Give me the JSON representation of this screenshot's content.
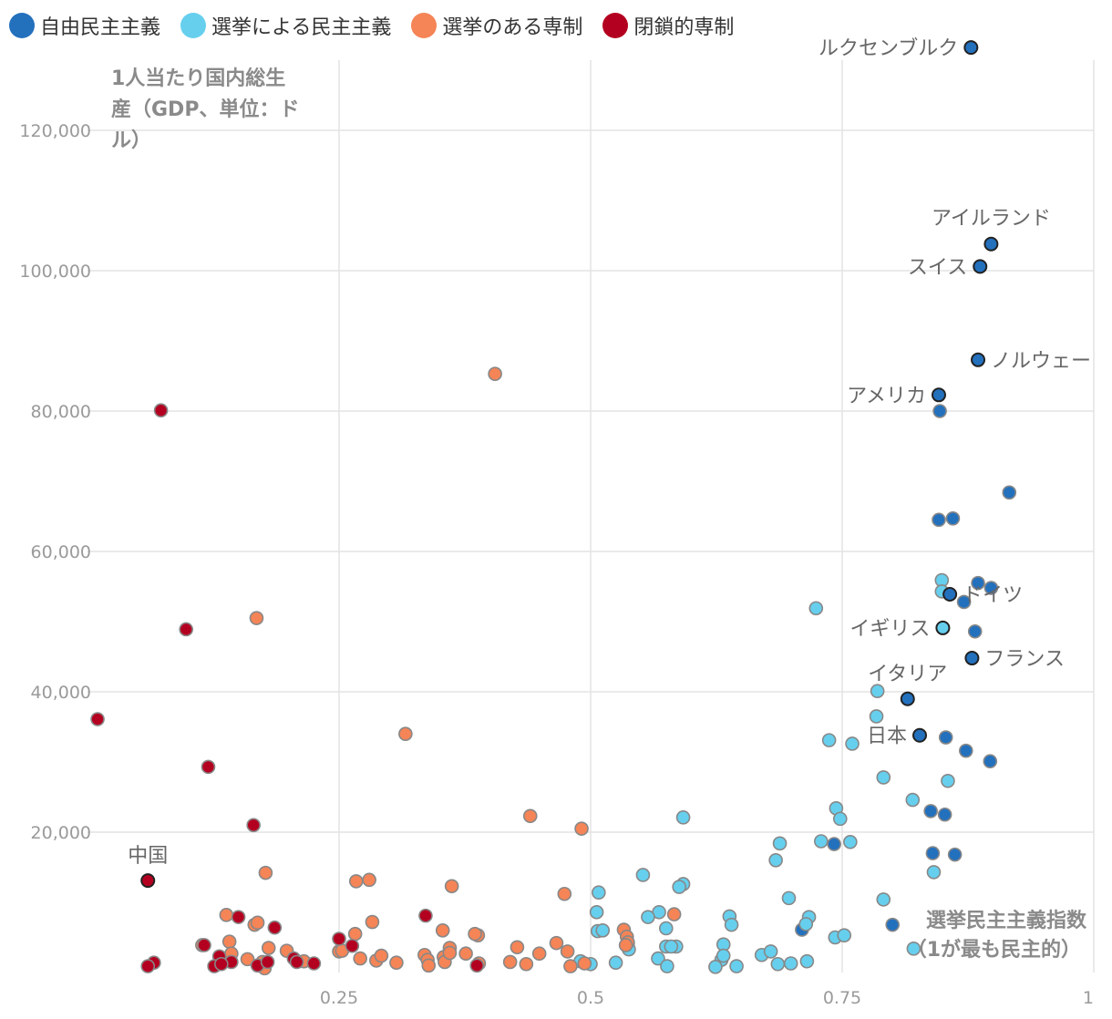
{
  "chart_data": {
    "type": "scatter",
    "legend": {
      "position": "top-left",
      "items": [
        {
          "name": "自由民主主義",
          "color": "#2370bd"
        },
        {
          "name": "選挙による民主主義",
          "color": "#66cfee"
        },
        {
          "name": "選挙のある専制",
          "color": "#f58456"
        },
        {
          "name": "閉鎖的専制",
          "color": "#b40020"
        }
      ]
    },
    "grid": true,
    "xlabel": [
      "選挙民主主義指数",
      "（1が最も民主的）"
    ],
    "ylabel": [
      "1人当たり国内総生",
      "産（GDP、単位：ド",
      "ル）"
    ],
    "xlim": [
      0,
      1
    ],
    "ylim": [
      0,
      130000
    ],
    "x_ticks": [
      0.25,
      0.5,
      0.75,
      1
    ],
    "x_tick_labels": [
      "0.25",
      "0.5",
      "0.75",
      "1"
    ],
    "y_ticks": [
      20000,
      40000,
      60000,
      80000,
      100000,
      120000
    ],
    "y_tick_labels": [
      "20,000",
      "40,000",
      "60,000",
      "80,000",
      "100,000",
      "120,000"
    ],
    "labels": [
      {
        "text": "ルクセンブルク",
        "x": 0.878,
        "y": 131800,
        "anchor": "end",
        "dx": -14,
        "dy": 8
      },
      {
        "text": "アイルランド",
        "x": 0.898,
        "y": 103800,
        "anchor": "middle",
        "dx": 0,
        "dy": -21
      },
      {
        "text": "スイス",
        "x": 0.887,
        "y": 100600,
        "anchor": "end",
        "dx": -14,
        "dy": 8
      },
      {
        "text": "ノルウェー",
        "x": 0.885,
        "y": 87300,
        "anchor": "start",
        "dx": 14,
        "dy": 8
      },
      {
        "text": "アメリカ",
        "x": 0.846,
        "y": 82300,
        "anchor": "end",
        "dx": -14,
        "dy": 8
      },
      {
        "text": "ドイツ",
        "x": 0.857,
        "y": 53900,
        "anchor": "start",
        "dx": 14,
        "dy": 8
      },
      {
        "text": "イギリス",
        "x": 0.85,
        "y": 49100,
        "anchor": "end",
        "dx": -14,
        "dy": 8
      },
      {
        "text": "フランス",
        "x": 0.879,
        "y": 44800,
        "anchor": "start",
        "dx": 14,
        "dy": 8
      },
      {
        "text": "イタリア",
        "x": 0.815,
        "y": 39000,
        "anchor": "middle",
        "dx": 0,
        "dy": -20
      },
      {
        "text": "日本",
        "x": 0.827,
        "y": 33800,
        "anchor": "end",
        "dx": -14,
        "dy": 8
      },
      {
        "text": "中国",
        "x": 0.06,
        "y": 13100,
        "anchor": "middle",
        "dx": 0,
        "dy": -20
      }
    ],
    "series": [
      {
        "name": "自由民主主義",
        "color": "#2370bd",
        "points": [
          [
            0.878,
            131800
          ],
          [
            0.898,
            103800
          ],
          [
            0.887,
            100600
          ],
          [
            0.885,
            87300
          ],
          [
            0.846,
            82300
          ],
          [
            0.847,
            80000
          ],
          [
            0.916,
            68400
          ],
          [
            0.846,
            64500
          ],
          [
            0.86,
            64700
          ],
          [
            0.885,
            55500
          ],
          [
            0.898,
            54800
          ],
          [
            0.857,
            53900
          ],
          [
            0.871,
            52800
          ],
          [
            0.882,
            48600
          ],
          [
            0.879,
            44800
          ],
          [
            0.815,
            39000
          ],
          [
            0.827,
            33800
          ],
          [
            0.853,
            33500
          ],
          [
            0.873,
            31600
          ],
          [
            0.897,
            30100
          ],
          [
            0.838,
            23000
          ],
          [
            0.852,
            22500
          ],
          [
            0.742,
            18300
          ],
          [
            0.84,
            17000
          ],
          [
            0.862,
            16800
          ],
          [
            0.71,
            6100
          ],
          [
            0.8,
            6800
          ]
        ]
      },
      {
        "name": "選挙による民主主義",
        "color": "#66cfee",
        "points": [
          [
            0.85,
            49100
          ],
          [
            0.849,
            55900
          ],
          [
            0.849,
            54300
          ],
          [
            0.724,
            51900
          ],
          [
            0.785,
            40100
          ],
          [
            0.784,
            36500
          ],
          [
            0.737,
            33100
          ],
          [
            0.76,
            32600
          ],
          [
            0.791,
            27800
          ],
          [
            0.855,
            27300
          ],
          [
            0.82,
            24600
          ],
          [
            0.744,
            23400
          ],
          [
            0.748,
            21900
          ],
          [
            0.592,
            22100
          ],
          [
            0.729,
            18700
          ],
          [
            0.758,
            18600
          ],
          [
            0.688,
            18400
          ],
          [
            0.684,
            16000
          ],
          [
            0.841,
            14300
          ],
          [
            0.552,
            13900
          ],
          [
            0.592,
            12600
          ],
          [
            0.588,
            12200
          ],
          [
            0.508,
            11400
          ],
          [
            0.791,
            10400
          ],
          [
            0.697,
            10600
          ],
          [
            0.506,
            8600
          ],
          [
            0.568,
            8600
          ],
          [
            0.557,
            7900
          ],
          [
            0.638,
            8000
          ],
          [
            0.717,
            7900
          ],
          [
            0.507,
            5900
          ],
          [
            0.512,
            6000
          ],
          [
            0.575,
            6300
          ],
          [
            0.64,
            6800
          ],
          [
            0.714,
            6900
          ],
          [
            0.537,
            4100
          ],
          [
            0.538,
            3300
          ],
          [
            0.575,
            3700
          ],
          [
            0.585,
            3700
          ],
          [
            0.632,
            4000
          ],
          [
            0.743,
            5000
          ],
          [
            0.752,
            5300
          ],
          [
            0.821,
            3400
          ],
          [
            0.49,
            1600
          ],
          [
            0.525,
            1400
          ],
          [
            0.567,
            2000
          ],
          [
            0.576,
            900
          ],
          [
            0.63,
            1800
          ],
          [
            0.624,
            800
          ],
          [
            0.645,
            900
          ],
          [
            0.67,
            2500
          ],
          [
            0.679,
            3000
          ],
          [
            0.686,
            1200
          ],
          [
            0.699,
            1300
          ],
          [
            0.715,
            1600
          ],
          [
            0.58,
            3700
          ],
          [
            0.5,
            1200
          ],
          [
            0.632,
            2400
          ]
        ]
      },
      {
        "name": "選挙のある専制",
        "color": "#f58456",
        "points": [
          [
            0.168,
            50500
          ],
          [
            0.405,
            85300
          ],
          [
            0.316,
            34000
          ],
          [
            0.44,
            22300
          ],
          [
            0.491,
            20500
          ],
          [
            0.177,
            14200
          ],
          [
            0.267,
            13000
          ],
          [
            0.28,
            13200
          ],
          [
            0.362,
            12300
          ],
          [
            0.474,
            11200
          ],
          [
            0.583,
            8300
          ],
          [
            0.138,
            8200
          ],
          [
            0.166,
            6800
          ],
          [
            0.169,
            7100
          ],
          [
            0.283,
            7200
          ],
          [
            0.353,
            6000
          ],
          [
            0.388,
            5300
          ],
          [
            0.533,
            6100
          ],
          [
            0.536,
            5100
          ],
          [
            0.141,
            4400
          ],
          [
            0.18,
            3500
          ],
          [
            0.198,
            3100
          ],
          [
            0.25,
            3000
          ],
          [
            0.266,
            5500
          ],
          [
            0.354,
            2200
          ],
          [
            0.376,
            2700
          ],
          [
            0.427,
            3600
          ],
          [
            0.449,
            2700
          ],
          [
            0.466,
            4200
          ],
          [
            0.477,
            3000
          ],
          [
            0.537,
            4300
          ],
          [
            0.114,
            3900
          ],
          [
            0.143,
            2700
          ],
          [
            0.159,
            1900
          ],
          [
            0.174,
            1500
          ],
          [
            0.176,
            600
          ],
          [
            0.215,
            1600
          ],
          [
            0.253,
            3100
          ],
          [
            0.271,
            2000
          ],
          [
            0.287,
            1700
          ],
          [
            0.292,
            2400
          ],
          [
            0.307,
            1400
          ],
          [
            0.335,
            2500
          ],
          [
            0.338,
            1800
          ],
          [
            0.339,
            1000
          ],
          [
            0.355,
            1500
          ],
          [
            0.36,
            3500
          ],
          [
            0.36,
            2800
          ],
          [
            0.389,
            1300
          ],
          [
            0.42,
            1500
          ],
          [
            0.436,
            1200
          ],
          [
            0.48,
            900
          ],
          [
            0.494,
            1300
          ],
          [
            0.535,
            3900
          ],
          [
            0.385,
            5500
          ]
        ]
      },
      {
        "name": "閉鎖的専制",
        "color": "#b40020",
        "points": [
          [
            0.073,
            80100
          ],
          [
            0.098,
            48900
          ],
          [
            0.01,
            36100
          ],
          [
            0.12,
            29300
          ],
          [
            0.165,
            21000
          ],
          [
            0.06,
            13100
          ],
          [
            0.15,
            7900
          ],
          [
            0.186,
            6400
          ],
          [
            0.336,
            8100
          ],
          [
            0.25,
            4800
          ],
          [
            0.263,
            3800
          ],
          [
            0.116,
            3900
          ],
          [
            0.131,
            2300
          ],
          [
            0.143,
            1500
          ],
          [
            0.169,
            1000
          ],
          [
            0.179,
            1500
          ],
          [
            0.205,
            2000
          ],
          [
            0.208,
            1500
          ],
          [
            0.225,
            1300
          ],
          [
            0.066,
            1400
          ],
          [
            0.06,
            900
          ],
          [
            0.126,
            900
          ],
          [
            0.133,
            1200
          ],
          [
            0.387,
            1000
          ]
        ]
      }
    ]
  }
}
